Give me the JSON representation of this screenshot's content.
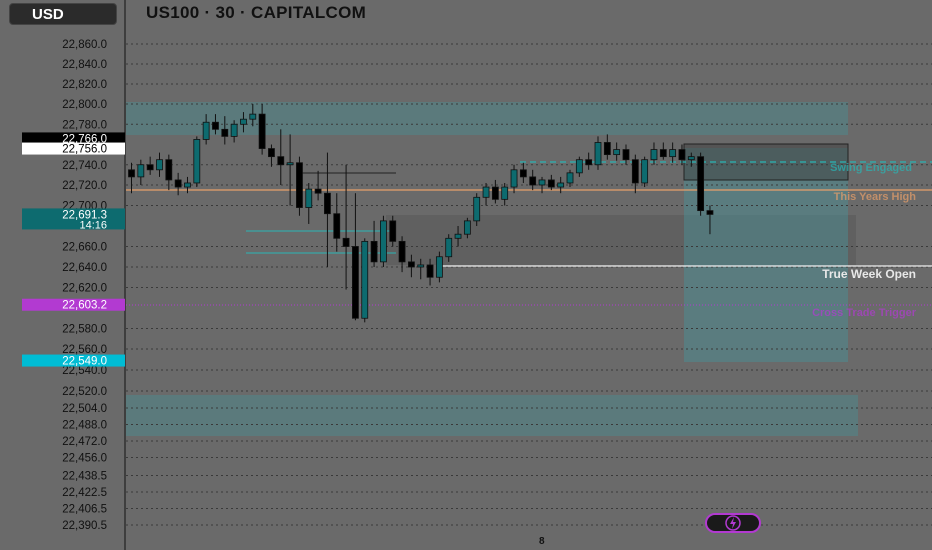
{
  "toolbar": {
    "currency_label": "USD",
    "title": "US100 · 30 · CAPITALCOM"
  },
  "price_axis": {
    "ticks": [
      {
        "label": "22,860.0",
        "value": 22860
      },
      {
        "label": "22,840.0",
        "value": 22840
      },
      {
        "label": "22,820.0",
        "value": 22820
      },
      {
        "label": "22,800.0",
        "value": 22800
      },
      {
        "label": "22,780.0",
        "value": 22780
      },
      {
        "label": "22,740.0",
        "value": 22740
      },
      {
        "label": "22,720.0",
        "value": 22720
      },
      {
        "label": "22,700.0",
        "value": 22700
      },
      {
        "label": "22,660.0",
        "value": 22660
      },
      {
        "label": "22,640.0",
        "value": 22640
      },
      {
        "label": "22,620.0",
        "value": 22620
      },
      {
        "label": "22,580.0",
        "value": 22580
      },
      {
        "label": "22,560.0",
        "value": 22560
      },
      {
        "label": "22,540.0",
        "value": 22540
      },
      {
        "label": "22,520.0",
        "value": 22520
      },
      {
        "label": "22,504.0",
        "value": 22504
      },
      {
        "label": "22,488.0",
        "value": 22488
      },
      {
        "label": "22,472.0",
        "value": 22472
      },
      {
        "label": "22,456.0",
        "value": 22456
      },
      {
        "label": "22,438.5",
        "value": 22438.5
      },
      {
        "label": "22,422.5",
        "value": 22422.5
      },
      {
        "label": "22,406.5",
        "value": 22406.5
      },
      {
        "label": "22,390.5",
        "value": 22390.5
      }
    ],
    "badges": [
      {
        "label": "22,766.0",
        "value": 22766,
        "bg": "#000000",
        "fg": "#ffffff"
      },
      {
        "label": "22,756.0",
        "value": 22756,
        "bg": "#ffffff",
        "fg": "#000000"
      },
      {
        "label": "22,691.3",
        "sub": "14:16",
        "value": 22691.3,
        "bg": "#0d6b6f",
        "fg": "#ffffff"
      },
      {
        "label": "22,603.2",
        "value": 22603.2,
        "bg": "#b23ad1",
        "fg": "#ffffff"
      },
      {
        "label": "22,549.0",
        "value": 22549,
        "bg": "#00bcd4",
        "fg": "#ffffff"
      }
    ]
  },
  "levels": {
    "true_week_open": "True Week Open",
    "this_years_high": "This Years High",
    "swing_engaged": "Swing Engaged",
    "purple_level": "Cross Trade Trigger"
  },
  "time_axis": {
    "label": "8"
  },
  "colors": {
    "up": "#0d6b6f",
    "down": "#000000",
    "purple": "#b23ad1",
    "orange": "#e8a06a",
    "cyan": "#00bcd4"
  },
  "chart_data": {
    "type": "candlestick",
    "title": "US100 · 30 · CAPITALCOM",
    "ylim": [
      22390.5,
      22860
    ],
    "candles": [
      {
        "o": 22735,
        "h": 22742,
        "l": 22712,
        "c": 22728
      },
      {
        "o": 22728,
        "h": 22745,
        "l": 22720,
        "c": 22740
      },
      {
        "o": 22740,
        "h": 22748,
        "l": 22730,
        "c": 22735
      },
      {
        "o": 22735,
        "h": 22752,
        "l": 22728,
        "c": 22745
      },
      {
        "o": 22745,
        "h": 22750,
        "l": 22715,
        "c": 22725
      },
      {
        "o": 22725,
        "h": 22732,
        "l": 22710,
        "c": 22718
      },
      {
        "o": 22718,
        "h": 22728,
        "l": 22712,
        "c": 22722
      },
      {
        "o": 22722,
        "h": 22768,
        "l": 22718,
        "c": 22765
      },
      {
        "o": 22765,
        "h": 22790,
        "l": 22760,
        "c": 22782
      },
      {
        "o": 22782,
        "h": 22790,
        "l": 22770,
        "c": 22775
      },
      {
        "o": 22775,
        "h": 22788,
        "l": 22760,
        "c": 22768
      },
      {
        "o": 22768,
        "h": 22784,
        "l": 22762,
        "c": 22780
      },
      {
        "o": 22780,
        "h": 22792,
        "l": 22772,
        "c": 22785
      },
      {
        "o": 22785,
        "h": 22800,
        "l": 22778,
        "c": 22790
      },
      {
        "o": 22790,
        "h": 22800,
        "l": 22750,
        "c": 22756
      },
      {
        "o": 22756,
        "h": 22760,
        "l": 22738,
        "c": 22748
      },
      {
        "o": 22748,
        "h": 22775,
        "l": 22720,
        "c": 22740
      },
      {
        "o": 22740,
        "h": 22770,
        "l": 22700,
        "c": 22742
      },
      {
        "o": 22742,
        "h": 22748,
        "l": 22690,
        "c": 22698
      },
      {
        "o": 22698,
        "h": 22722,
        "l": 22682,
        "c": 22716
      },
      {
        "o": 22716,
        "h": 22734,
        "l": 22705,
        "c": 22712
      },
      {
        "o": 22712,
        "h": 22752,
        "l": 22640,
        "c": 22692
      },
      {
        "o": 22692,
        "h": 22712,
        "l": 22655,
        "c": 22668
      },
      {
        "o": 22668,
        "h": 22740,
        "l": 22618,
        "c": 22660
      },
      {
        "o": 22660,
        "h": 22712,
        "l": 22588,
        "c": 22590
      },
      {
        "o": 22590,
        "h": 22668,
        "l": 22586,
        "c": 22665
      },
      {
        "o": 22665,
        "h": 22685,
        "l": 22640,
        "c": 22645
      },
      {
        "o": 22645,
        "h": 22690,
        "l": 22640,
        "c": 22685
      },
      {
        "o": 22685,
        "h": 22690,
        "l": 22660,
        "c": 22665
      },
      {
        "o": 22665,
        "h": 22670,
        "l": 22635,
        "c": 22645
      },
      {
        "o": 22645,
        "h": 22652,
        "l": 22630,
        "c": 22640
      },
      {
        "o": 22640,
        "h": 22648,
        "l": 22628,
        "c": 22642
      },
      {
        "o": 22642,
        "h": 22648,
        "l": 22622,
        "c": 22630
      },
      {
        "o": 22630,
        "h": 22655,
        "l": 22625,
        "c": 22650
      },
      {
        "o": 22650,
        "h": 22672,
        "l": 22645,
        "c": 22668
      },
      {
        "o": 22668,
        "h": 22680,
        "l": 22660,
        "c": 22672
      },
      {
        "o": 22672,
        "h": 22688,
        "l": 22668,
        "c": 22685
      },
      {
        "o": 22685,
        "h": 22712,
        "l": 22680,
        "c": 22708
      },
      {
        "o": 22708,
        "h": 22722,
        "l": 22700,
        "c": 22718
      },
      {
        "o": 22718,
        "h": 22725,
        "l": 22702,
        "c": 22706
      },
      {
        "o": 22706,
        "h": 22722,
        "l": 22700,
        "c": 22718
      },
      {
        "o": 22718,
        "h": 22740,
        "l": 22712,
        "c": 22735
      },
      {
        "o": 22735,
        "h": 22742,
        "l": 22722,
        "c": 22728
      },
      {
        "o": 22728,
        "h": 22735,
        "l": 22715,
        "c": 22720
      },
      {
        "o": 22720,
        "h": 22728,
        "l": 22712,
        "c": 22725
      },
      {
        "o": 22725,
        "h": 22730,
        "l": 22715,
        "c": 22718
      },
      {
        "o": 22718,
        "h": 22728,
        "l": 22712,
        "c": 22722
      },
      {
        "o": 22722,
        "h": 22735,
        "l": 22718,
        "c": 22732
      },
      {
        "o": 22732,
        "h": 22748,
        "l": 22728,
        "c": 22745
      },
      {
        "o": 22745,
        "h": 22752,
        "l": 22735,
        "c": 22740
      },
      {
        "o": 22740,
        "h": 22768,
        "l": 22735,
        "c": 22762
      },
      {
        "o": 22762,
        "h": 22770,
        "l": 22745,
        "c": 22750
      },
      {
        "o": 22750,
        "h": 22762,
        "l": 22744,
        "c": 22755
      },
      {
        "o": 22755,
        "h": 22760,
        "l": 22740,
        "c": 22745
      },
      {
        "o": 22745,
        "h": 22750,
        "l": 22712,
        "c": 22722
      },
      {
        "o": 22722,
        "h": 22748,
        "l": 22718,
        "c": 22745
      },
      {
        "o": 22745,
        "h": 22762,
        "l": 22740,
        "c": 22755
      },
      {
        "o": 22755,
        "h": 22762,
        "l": 22745,
        "c": 22748
      },
      {
        "o": 22748,
        "h": 22762,
        "l": 22742,
        "c": 22755
      },
      {
        "o": 22755,
        "h": 22760,
        "l": 22740,
        "c": 22745
      },
      {
        "o": 22745,
        "h": 22752,
        "l": 22738,
        "c": 22748
      },
      {
        "o": 22748,
        "h": 22752,
        "l": 22690,
        "c": 22695
      },
      {
        "o": 22695,
        "h": 22700,
        "l": 22672,
        "c": 22691.3
      }
    ]
  }
}
